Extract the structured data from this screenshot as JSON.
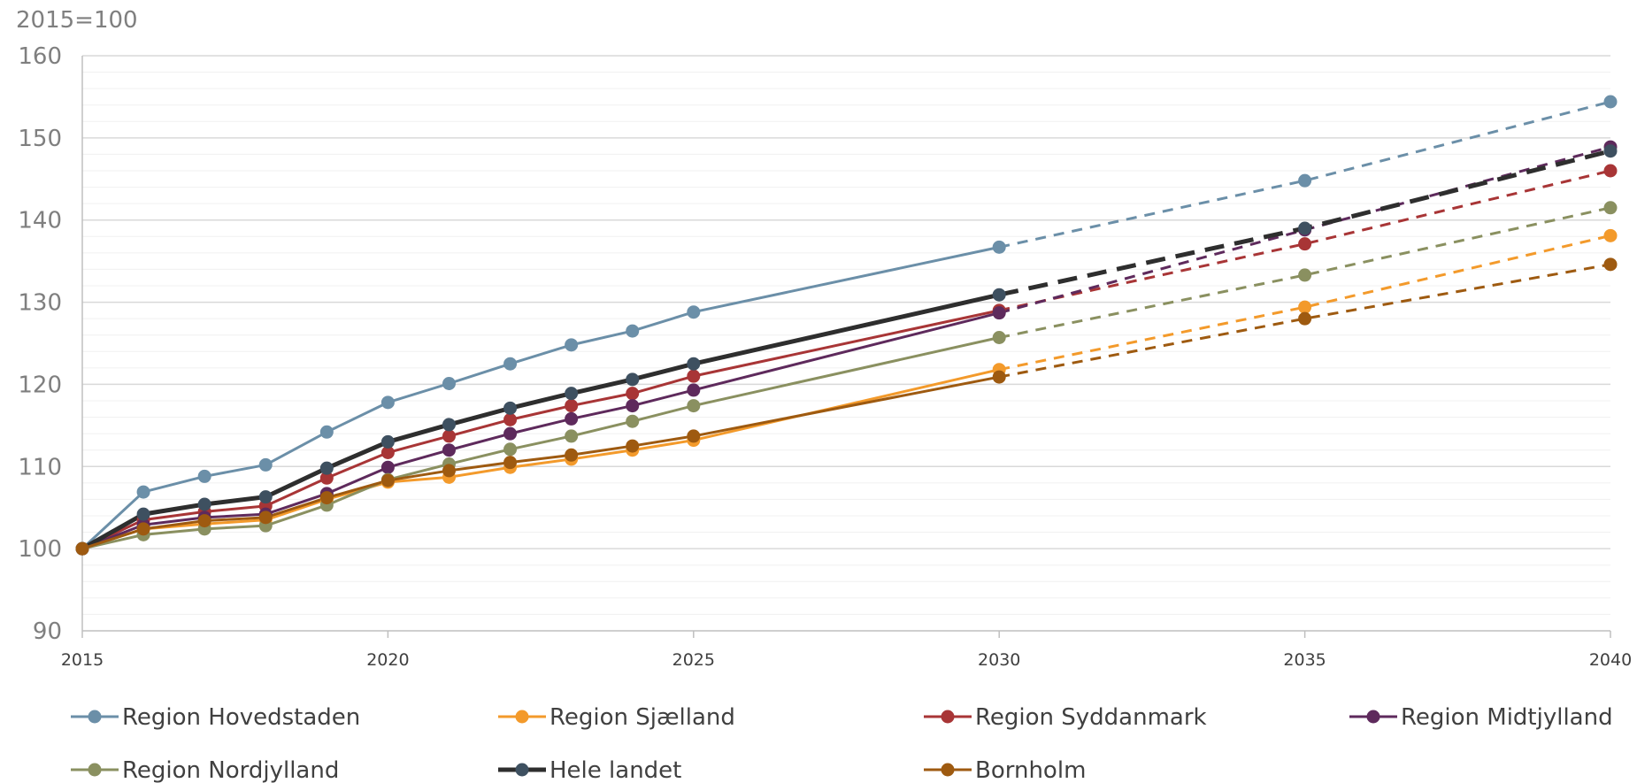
{
  "chart_data": {
    "type": "line",
    "unit_label": "2015=100",
    "x_ticks": [
      2015,
      2020,
      2025,
      2030,
      2035,
      2040
    ],
    "y_ticks": [
      90,
      100,
      110,
      120,
      130,
      140,
      150,
      160
    ],
    "xlim": [
      2015,
      2040
    ],
    "ylim": [
      90,
      160
    ],
    "grid": true,
    "legend_position": "bottom",
    "projection_start": 2030,
    "x": [
      2015,
      2016,
      2017,
      2018,
      2019,
      2020,
      2021,
      2022,
      2023,
      2024,
      2025,
      2030,
      2035,
      2040
    ],
    "series": [
      {
        "name": "Region Hovedstaden",
        "color": "#6b8fa8",
        "width": 3,
        "values": [
          100,
          106.9,
          108.8,
          110.2,
          114.2,
          117.8,
          120.1,
          122.5,
          124.8,
          126.5,
          128.8,
          136.7,
          144.8,
          154.4
        ]
      },
      {
        "name": "Region Sjælland",
        "color": "#f39a2b",
        "width": 3,
        "values": [
          100,
          102.4,
          103.0,
          103.5,
          106.0,
          108.1,
          108.7,
          109.9,
          110.9,
          112.0,
          113.2,
          121.8,
          129.4,
          138.1
        ]
      },
      {
        "name": "Region Syddanmark",
        "color": "#a83536",
        "width": 3,
        "values": [
          100,
          103.5,
          104.5,
          105.2,
          108.6,
          111.7,
          113.7,
          115.7,
          117.4,
          118.9,
          121.0,
          129.0,
          137.1,
          146.0
        ]
      },
      {
        "name": "Region Midtjylland",
        "color": "#5e2a5c",
        "width": 3,
        "values": [
          100,
          102.9,
          103.8,
          104.2,
          106.7,
          109.9,
          112.0,
          114.0,
          115.8,
          117.4,
          119.3,
          128.7,
          138.8,
          148.9
        ]
      },
      {
        "name": "Region Nordjylland",
        "color": "#8a9060",
        "width": 3,
        "values": [
          100,
          101.7,
          102.4,
          102.8,
          105.3,
          108.4,
          110.3,
          112.1,
          113.7,
          115.5,
          117.4,
          125.7,
          133.3,
          141.5
        ]
      },
      {
        "name": "Hele landet",
        "color": "#2e2e2e",
        "width": 5,
        "values": [
          100,
          104.2,
          105.4,
          106.3,
          109.8,
          113.0,
          115.1,
          117.1,
          118.9,
          120.6,
          122.5,
          130.9,
          139.0,
          148.4
        ]
      },
      {
        "name": "Bornholm",
        "color": "#9e5a10",
        "width": 3,
        "values": [
          100,
          102.4,
          103.4,
          103.8,
          106.2,
          108.3,
          109.5,
          110.5,
          111.4,
          112.5,
          113.7,
          120.9,
          128.0,
          134.6
        ]
      }
    ],
    "marker_colors": {
      "Hele landet": "#3e5060"
    }
  }
}
